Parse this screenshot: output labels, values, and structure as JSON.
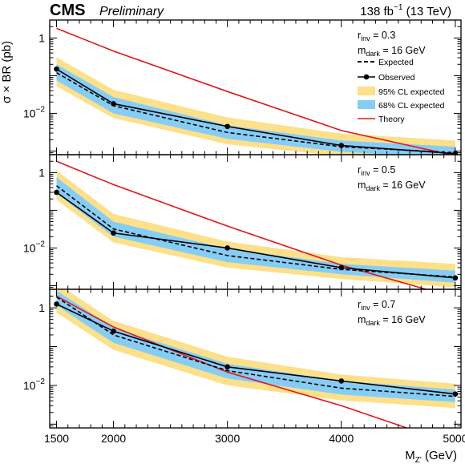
{
  "header": {
    "experiment": "CMS",
    "status": "Preliminary",
    "luminosity": "138 fb",
    "luminosity_sup": "−1",
    "energy": "(13 TeV)"
  },
  "axes": {
    "xlabel_main": "M",
    "xlabel_sub": "Z'",
    "xlabel_unit": "(GeV)",
    "ylabel": "σ × BR (pb)"
  },
  "legend": {
    "expected": "Expected",
    "observed": "Observed",
    "band95": "95% CL expected",
    "band68": "68% CL expected",
    "theory": "Theory"
  },
  "colors": {
    "band95": "#fde08a",
    "band68": "#86cdf5",
    "theory": "#e3161b",
    "observed": "#000000",
    "expected": "#000000"
  },
  "chart_data": {
    "type": "line",
    "xlim": [
      1440,
      5050
    ],
    "ylim": [
      0.0008,
      3.0
    ],
    "yscale": "log",
    "x_ticks": [
      1500,
      2000,
      3000,
      4000,
      5000
    ],
    "y_ticks": [
      {
        "value": 1,
        "label": "1"
      },
      {
        "value": 0.01,
        "base": "10",
        "exp": "−2"
      }
    ],
    "x": [
      1500,
      2000,
      3000,
      4000,
      5000
    ],
    "panels": [
      {
        "param_r_main": "r",
        "param_r_sub": "inv",
        "param_r_value": " = 0.3",
        "param_m_main": "m",
        "param_m_sub": "dark",
        "param_m_value": " = 16 GeV",
        "series": [
          {
            "name": "Observed",
            "values": [
              0.15,
              0.018,
              0.0045,
              0.0014,
              0.00085
            ]
          },
          {
            "name": "Expected",
            "values": [
              0.12,
              0.016,
              0.0031,
              0.0013,
              0.0009
            ]
          },
          {
            "name": "Theory",
            "values": [
              1.8,
              0.45,
              0.038,
              0.0035,
              0.00075
            ]
          }
        ],
        "band68": {
          "low": [
            0.075,
            0.01,
            0.0021,
            0.00095,
            0.00065
          ],
          "high": [
            0.2,
            0.027,
            0.0048,
            0.0019,
            0.0013
          ]
        },
        "band95": {
          "low": [
            0.052,
            0.0075,
            0.0015,
            0.00073,
            0.0005
          ],
          "high": [
            0.31,
            0.042,
            0.0078,
            0.0029,
            0.0019
          ]
        }
      },
      {
        "param_r_main": "r",
        "param_r_sub": "inv",
        "param_r_value": " = 0.5",
        "param_m_main": "m",
        "param_m_sub": "dark",
        "param_m_value": " = 16 GeV",
        "series": [
          {
            "name": "Observed",
            "values": [
              0.3,
              0.025,
              0.01,
              0.003,
              0.0016
            ]
          },
          {
            "name": "Expected",
            "values": [
              0.45,
              0.032,
              0.0063,
              0.0027,
              0.0017
            ]
          },
          {
            "name": "Theory",
            "values": [
              2.0,
              0.48,
              0.038,
              0.0035,
              0.00048
            ]
          }
        ],
        "band68": {
          "low": [
            0.28,
            0.02,
            0.0042,
            0.002,
            0.0012
          ],
          "high": [
            0.75,
            0.05,
            0.0095,
            0.0038,
            0.0025
          ]
        },
        "band95": {
          "low": [
            0.19,
            0.014,
            0.003,
            0.0015,
            0.0009
          ],
          "high": [
            1.15,
            0.08,
            0.0148,
            0.0057,
            0.0038
          ]
        }
      },
      {
        "param_r_main": "r",
        "param_r_sub": "inv",
        "param_r_value": " = 0.7",
        "param_m_main": "m",
        "param_m_sub": "dark",
        "param_m_value": " = 16 GeV",
        "series": [
          {
            "name": "Observed",
            "values": [
              1.25,
              0.25,
              0.03,
              0.013,
              0.006
            ]
          },
          {
            "name": "Expected",
            "values": [
              1.9,
              0.2,
              0.024,
              0.0085,
              0.0052
            ]
          },
          {
            "name": "Theory",
            "values": [
              2.0,
              0.32,
              0.022,
              0.003,
              0.0003
            ]
          }
        ],
        "band68": {
          "low": [
            1.15,
            0.125,
            0.015,
            0.0058,
            0.0037
          ],
          "high": [
            2.8,
            0.3,
            0.036,
            0.013,
            0.0078
          ]
        },
        "band95": {
          "low": [
            0.75,
            0.082,
            0.01,
            0.0041,
            0.0026
          ],
          "high": [
            4.3,
            0.46,
            0.055,
            0.019,
            0.011
          ]
        }
      }
    ]
  }
}
